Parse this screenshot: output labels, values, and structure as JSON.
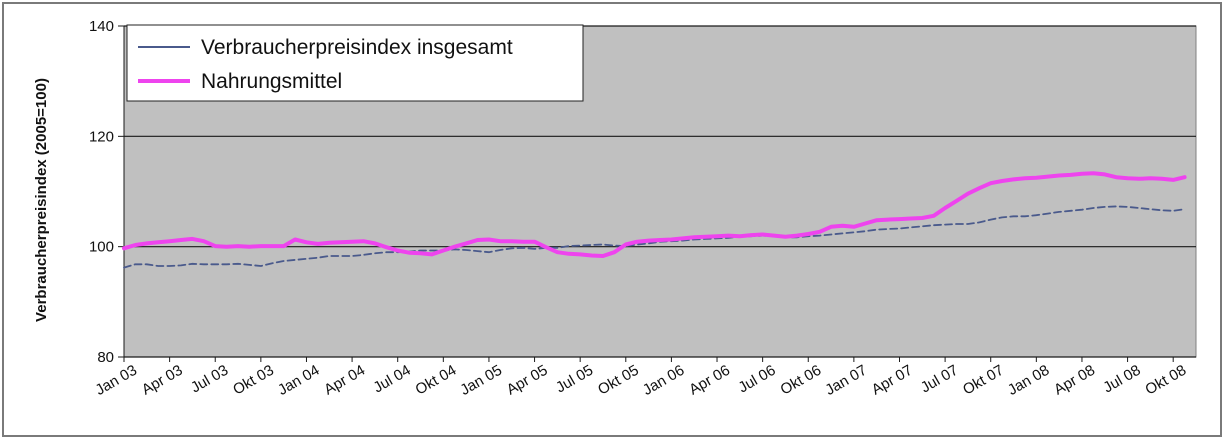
{
  "chart_data": {
    "type": "line",
    "title": "",
    "xlabel": "",
    "ylabel": "Verbraucherpreisindex (2005=100)",
    "ylim": [
      80,
      140
    ],
    "yticks": [
      80,
      100,
      120,
      140
    ],
    "ytick_labels": [
      "80",
      "100",
      "120",
      "140"
    ],
    "grid": true,
    "legend_position": "top-left",
    "x_tick_labels": [
      "Jan 03",
      "Apr 03",
      "Jul 03",
      "Okt 03",
      "Jan 04",
      "Apr 04",
      "Jul 04",
      "Okt 04",
      "Jan 05",
      "Apr 05",
      "Jul 05",
      "Okt 05",
      "Jan 06",
      "Apr 06",
      "Jul 06",
      "Okt 06",
      "Jan 07",
      "Apr 07",
      "Jul 07",
      "Okt 07",
      "Jan 08",
      "Apr 08",
      "Jul 08",
      "Okt 08"
    ],
    "series": [
      {
        "name": "Verbraucherpreisindex insgesamt",
        "color": "#4a5a8c",
        "style": "dashed",
        "values": [
          96.2,
          96.8,
          96.8,
          96.5,
          96.5,
          96.6,
          96.9,
          96.8,
          96.8,
          96.8,
          96.9,
          96.7,
          96.5,
          97.0,
          97.4,
          97.6,
          97.8,
          98.0,
          98.3,
          98.3,
          98.3,
          98.5,
          98.8,
          99.0,
          99.0,
          99.1,
          99.3,
          99.3,
          99.3,
          99.5,
          99.4,
          99.2,
          99.0,
          99.4,
          99.7,
          99.8,
          99.6,
          99.8,
          99.8,
          100.1,
          100.2,
          100.3,
          100.4,
          100.2,
          100.1,
          100.4,
          100.6,
          100.9,
          101.0,
          101.1,
          101.3,
          101.4,
          101.5,
          101.6,
          101.8,
          101.9,
          102.0,
          101.9,
          101.7,
          101.7,
          101.9,
          102.0,
          102.2,
          102.4,
          102.6,
          102.8,
          103.1,
          103.2,
          103.3,
          103.5,
          103.7,
          103.9,
          104.0,
          104.1,
          104.1,
          104.4,
          104.9,
          105.3,
          105.5,
          105.5,
          105.7,
          106.0,
          106.3,
          106.5,
          106.7,
          107.0,
          107.2,
          107.3,
          107.2,
          107.0,
          106.8,
          106.6,
          106.5,
          106.8
        ]
      },
      {
        "name": "Nahrungsmittel",
        "color": "#ee44ee",
        "style": "solid",
        "values": [
          99.7,
          100.3,
          100.6,
          100.8,
          101.0,
          101.2,
          101.4,
          101.0,
          100.1,
          100.0,
          100.1,
          100.0,
          100.1,
          100.1,
          100.1,
          101.3,
          100.8,
          100.5,
          100.7,
          100.8,
          100.9,
          101.0,
          100.6,
          99.9,
          99.3,
          98.9,
          98.8,
          98.6,
          99.3,
          100.0,
          100.6,
          101.2,
          101.3,
          101.0,
          101.0,
          100.9,
          100.9,
          99.9,
          99.0,
          98.7,
          98.6,
          98.4,
          98.3,
          99.0,
          100.4,
          100.9,
          101.1,
          101.2,
          101.3,
          101.5,
          101.7,
          101.8,
          101.9,
          102.0,
          101.9,
          102.1,
          102.2,
          102.0,
          101.8,
          102.0,
          102.3,
          102.7,
          103.6,
          103.8,
          103.6,
          104.2,
          104.8,
          104.9,
          105.0,
          105.1,
          105.2,
          105.6,
          107.0,
          108.3,
          109.6,
          110.6,
          111.5,
          111.9,
          112.2,
          112.4,
          112.5,
          112.7,
          112.9,
          113.0,
          113.2,
          113.3,
          113.1,
          112.6,
          112.4,
          112.3,
          112.4,
          112.3,
          112.1,
          112.6
        ]
      }
    ]
  }
}
